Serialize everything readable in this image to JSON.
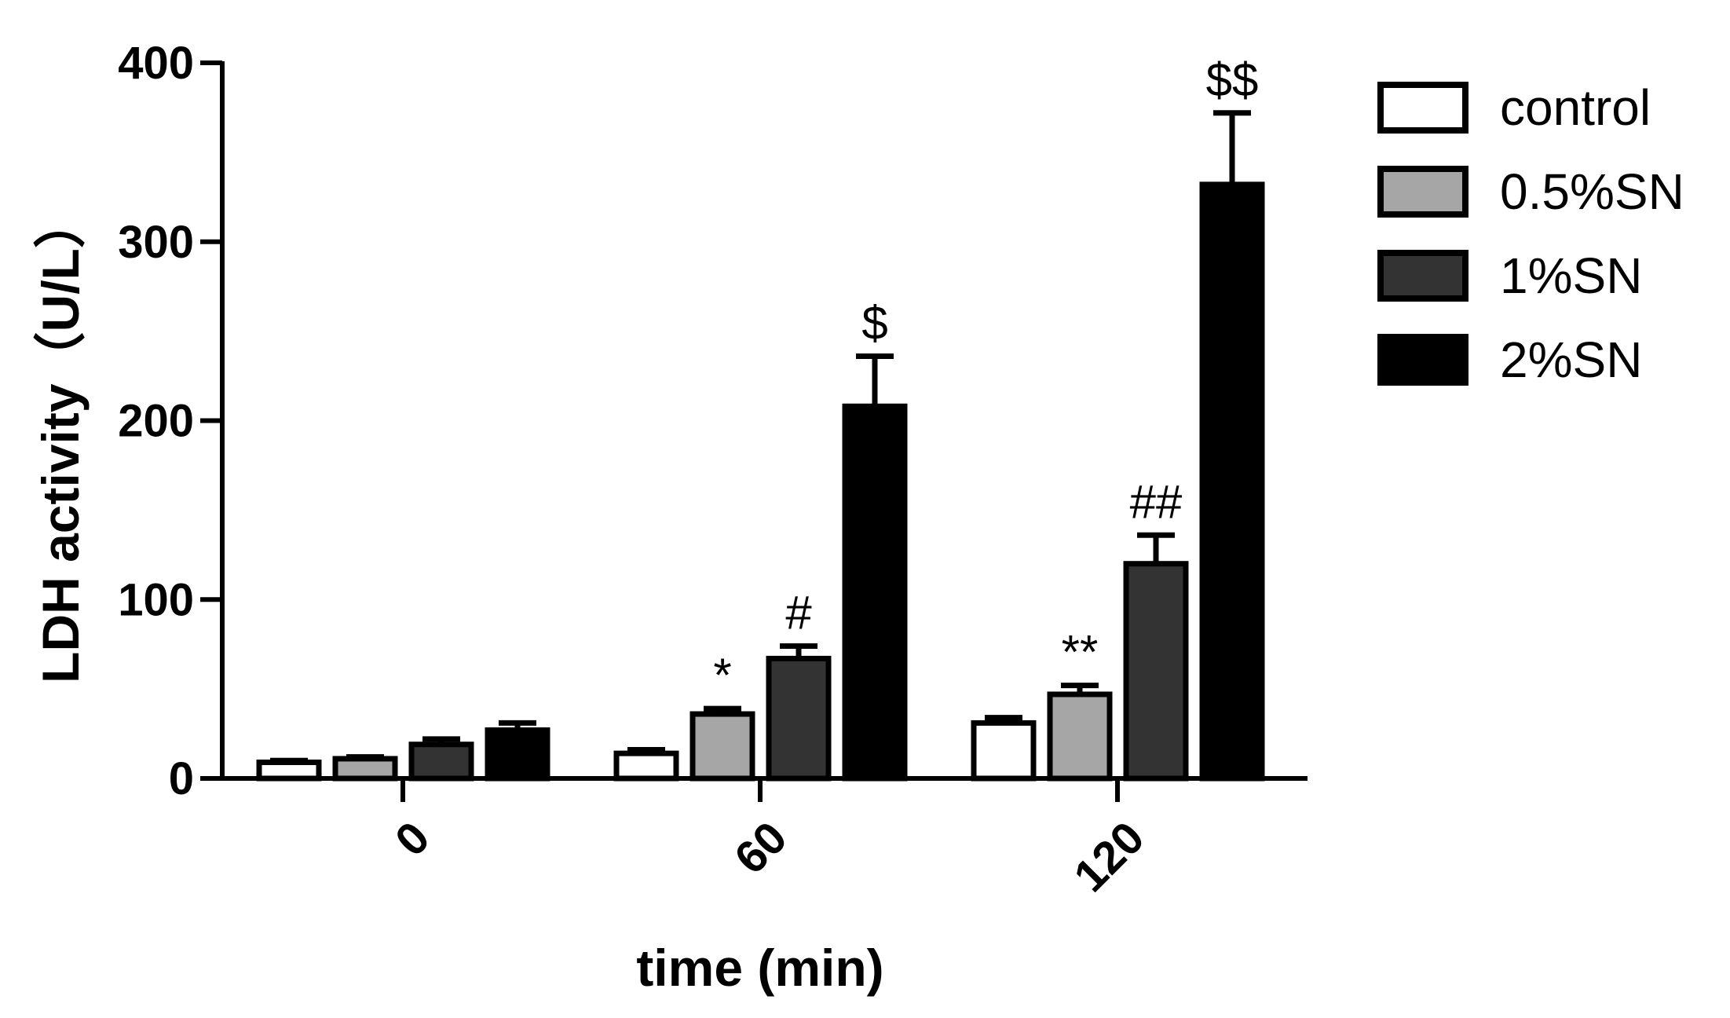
{
  "chart_data": {
    "type": "bar",
    "title": "",
    "xlabel": "time (min)",
    "ylabel": "LDH activity（U/L）",
    "categories": [
      "0",
      "60",
      "120"
    ],
    "ylim": [
      0,
      400
    ],
    "yticks": [
      0,
      100,
      200,
      300,
      400
    ],
    "grid": false,
    "legend_position": "right",
    "series": [
      {
        "name": "control",
        "color": "#ffffff",
        "values": [
          9,
          14,
          31
        ],
        "errors": [
          1,
          2,
          3
        ]
      },
      {
        "name": "0.5%SN",
        "color": "#a6a6a6",
        "values": [
          11,
          36,
          47
        ],
        "errors": [
          1,
          3,
          5
        ]
      },
      {
        "name": "1%SN",
        "color": "#333333",
        "values": [
          19,
          67,
          120
        ],
        "errors": [
          3,
          7,
          16
        ]
      },
      {
        "name": "2%SN",
        "color": "#000000",
        "values": [
          27,
          208,
          332
        ],
        "errors": [
          4,
          28,
          40
        ]
      }
    ],
    "annotations": [
      {
        "category": "60",
        "series": "0.5%SN",
        "text": "*"
      },
      {
        "category": "60",
        "series": "1%SN",
        "text": "#"
      },
      {
        "category": "60",
        "series": "2%SN",
        "text": "$"
      },
      {
        "category": "120",
        "series": "0.5%SN",
        "text": "**"
      },
      {
        "category": "120",
        "series": "1%SN",
        "text": "##"
      },
      {
        "category": "120",
        "series": "2%SN",
        "text": "$$"
      }
    ]
  }
}
